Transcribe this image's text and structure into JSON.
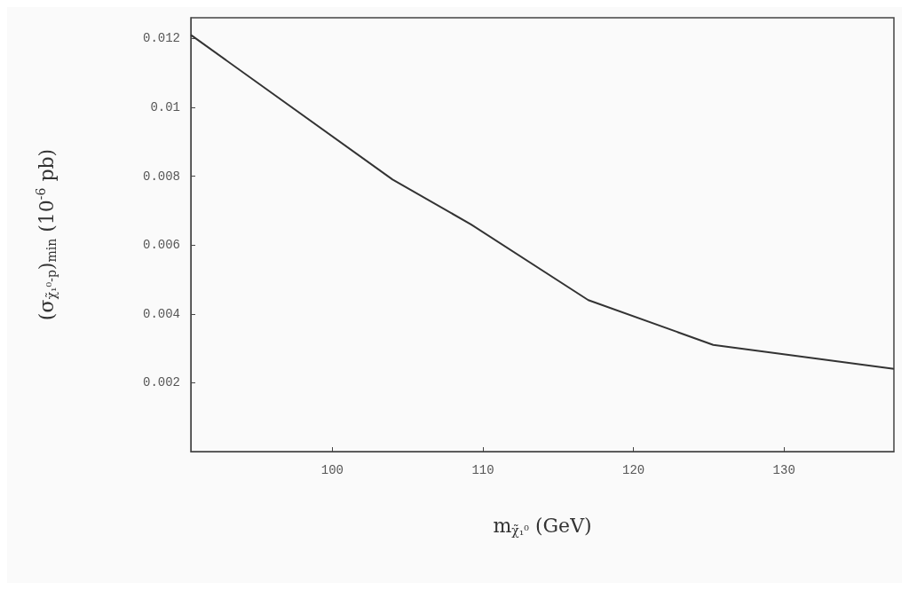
{
  "chart_data": {
    "type": "line",
    "xlabel": "m$_{χ̃₁⁰}$ (GeV)",
    "ylabel": "(σ$_{χ̃₁⁰-p}$)$_{min}$ (10$^{-6}$ pb)",
    "x": [
      90.6,
      104,
      109.2,
      117,
      125.3,
      137.3
    ],
    "series": [
      {
        "color": "#333333",
        "values": [
          0.0121,
          0.0079,
          0.0066,
          0.0044,
          0.0031,
          0.0024
        ]
      }
    ],
    "xlim": [
      90.6,
      137.3
    ],
    "xticks": [
      100,
      110,
      120,
      130
    ],
    "ylim": [
      0,
      0.0126
    ],
    "yticks": [
      0.002,
      0.004,
      0.006,
      0.008,
      0.01,
      0.012
    ],
    "grid": false,
    "marker": "none",
    "line_style": "solid"
  }
}
